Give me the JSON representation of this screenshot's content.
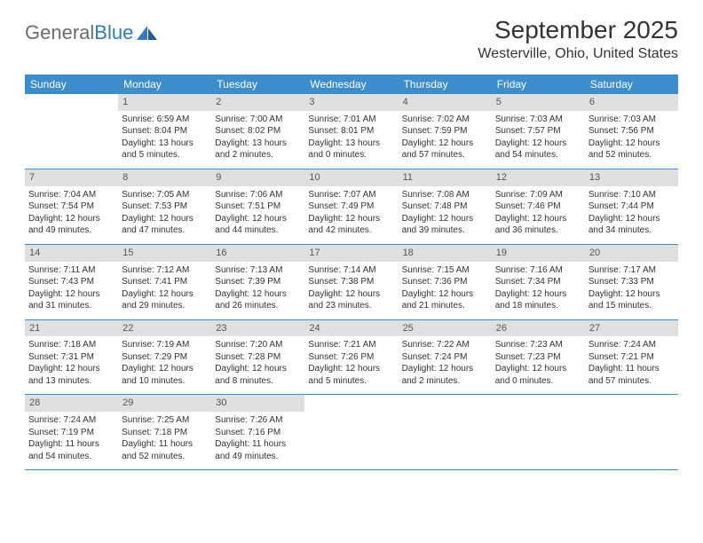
{
  "logo": {
    "text1": "General",
    "text2": "Blue"
  },
  "title": "September 2025",
  "location": "Westerville, Ohio, United States",
  "colors": {
    "header_bg": "#3c8dcc",
    "header_text": "#ffffff",
    "daynum_bg": "#e0e0e0",
    "daynum_text": "#565656",
    "week_border": "#3c8dcc",
    "logo_gray": "#6b6b6b",
    "logo_blue": "#2d7bc0",
    "body_text": "#333333",
    "background": "#ffffff"
  },
  "typography": {
    "month_title_fontsize": 28,
    "location_fontsize": 16,
    "dayhead_fontsize": 12,
    "daynum_fontsize": 11,
    "cell_fontsize": 10
  },
  "dayNames": [
    "Sunday",
    "Monday",
    "Tuesday",
    "Wednesday",
    "Thursday",
    "Friday",
    "Saturday"
  ],
  "weeks": [
    [
      {
        "day": "",
        "sunrise": "",
        "sunset": "",
        "daylight": ""
      },
      {
        "day": "1",
        "sunrise": "Sunrise: 6:59 AM",
        "sunset": "Sunset: 8:04 PM",
        "daylight": "Daylight: 13 hours and 5 minutes."
      },
      {
        "day": "2",
        "sunrise": "Sunrise: 7:00 AM",
        "sunset": "Sunset: 8:02 PM",
        "daylight": "Daylight: 13 hours and 2 minutes."
      },
      {
        "day": "3",
        "sunrise": "Sunrise: 7:01 AM",
        "sunset": "Sunset: 8:01 PM",
        "daylight": "Daylight: 13 hours and 0 minutes."
      },
      {
        "day": "4",
        "sunrise": "Sunrise: 7:02 AM",
        "sunset": "Sunset: 7:59 PM",
        "daylight": "Daylight: 12 hours and 57 minutes."
      },
      {
        "day": "5",
        "sunrise": "Sunrise: 7:03 AM",
        "sunset": "Sunset: 7:57 PM",
        "daylight": "Daylight: 12 hours and 54 minutes."
      },
      {
        "day": "6",
        "sunrise": "Sunrise: 7:03 AM",
        "sunset": "Sunset: 7:56 PM",
        "daylight": "Daylight: 12 hours and 52 minutes."
      }
    ],
    [
      {
        "day": "7",
        "sunrise": "Sunrise: 7:04 AM",
        "sunset": "Sunset: 7:54 PM",
        "daylight": "Daylight: 12 hours and 49 minutes."
      },
      {
        "day": "8",
        "sunrise": "Sunrise: 7:05 AM",
        "sunset": "Sunset: 7:53 PM",
        "daylight": "Daylight: 12 hours and 47 minutes."
      },
      {
        "day": "9",
        "sunrise": "Sunrise: 7:06 AM",
        "sunset": "Sunset: 7:51 PM",
        "daylight": "Daylight: 12 hours and 44 minutes."
      },
      {
        "day": "10",
        "sunrise": "Sunrise: 7:07 AM",
        "sunset": "Sunset: 7:49 PM",
        "daylight": "Daylight: 12 hours and 42 minutes."
      },
      {
        "day": "11",
        "sunrise": "Sunrise: 7:08 AM",
        "sunset": "Sunset: 7:48 PM",
        "daylight": "Daylight: 12 hours and 39 minutes."
      },
      {
        "day": "12",
        "sunrise": "Sunrise: 7:09 AM",
        "sunset": "Sunset: 7:46 PM",
        "daylight": "Daylight: 12 hours and 36 minutes."
      },
      {
        "day": "13",
        "sunrise": "Sunrise: 7:10 AM",
        "sunset": "Sunset: 7:44 PM",
        "daylight": "Daylight: 12 hours and 34 minutes."
      }
    ],
    [
      {
        "day": "14",
        "sunrise": "Sunrise: 7:11 AM",
        "sunset": "Sunset: 7:43 PM",
        "daylight": "Daylight: 12 hours and 31 minutes."
      },
      {
        "day": "15",
        "sunrise": "Sunrise: 7:12 AM",
        "sunset": "Sunset: 7:41 PM",
        "daylight": "Daylight: 12 hours and 29 minutes."
      },
      {
        "day": "16",
        "sunrise": "Sunrise: 7:13 AM",
        "sunset": "Sunset: 7:39 PM",
        "daylight": "Daylight: 12 hours and 26 minutes."
      },
      {
        "day": "17",
        "sunrise": "Sunrise: 7:14 AM",
        "sunset": "Sunset: 7:38 PM",
        "daylight": "Daylight: 12 hours and 23 minutes."
      },
      {
        "day": "18",
        "sunrise": "Sunrise: 7:15 AM",
        "sunset": "Sunset: 7:36 PM",
        "daylight": "Daylight: 12 hours and 21 minutes."
      },
      {
        "day": "19",
        "sunrise": "Sunrise: 7:16 AM",
        "sunset": "Sunset: 7:34 PM",
        "daylight": "Daylight: 12 hours and 18 minutes."
      },
      {
        "day": "20",
        "sunrise": "Sunrise: 7:17 AM",
        "sunset": "Sunset: 7:33 PM",
        "daylight": "Daylight: 12 hours and 15 minutes."
      }
    ],
    [
      {
        "day": "21",
        "sunrise": "Sunrise: 7:18 AM",
        "sunset": "Sunset: 7:31 PM",
        "daylight": "Daylight: 12 hours and 13 minutes."
      },
      {
        "day": "22",
        "sunrise": "Sunrise: 7:19 AM",
        "sunset": "Sunset: 7:29 PM",
        "daylight": "Daylight: 12 hours and 10 minutes."
      },
      {
        "day": "23",
        "sunrise": "Sunrise: 7:20 AM",
        "sunset": "Sunset: 7:28 PM",
        "daylight": "Daylight: 12 hours and 8 minutes."
      },
      {
        "day": "24",
        "sunrise": "Sunrise: 7:21 AM",
        "sunset": "Sunset: 7:26 PM",
        "daylight": "Daylight: 12 hours and 5 minutes."
      },
      {
        "day": "25",
        "sunrise": "Sunrise: 7:22 AM",
        "sunset": "Sunset: 7:24 PM",
        "daylight": "Daylight: 12 hours and 2 minutes."
      },
      {
        "day": "26",
        "sunrise": "Sunrise: 7:23 AM",
        "sunset": "Sunset: 7:23 PM",
        "daylight": "Daylight: 12 hours and 0 minutes."
      },
      {
        "day": "27",
        "sunrise": "Sunrise: 7:24 AM",
        "sunset": "Sunset: 7:21 PM",
        "daylight": "Daylight: 11 hours and 57 minutes."
      }
    ],
    [
      {
        "day": "28",
        "sunrise": "Sunrise: 7:24 AM",
        "sunset": "Sunset: 7:19 PM",
        "daylight": "Daylight: 11 hours and 54 minutes."
      },
      {
        "day": "29",
        "sunrise": "Sunrise: 7:25 AM",
        "sunset": "Sunset: 7:18 PM",
        "daylight": "Daylight: 11 hours and 52 minutes."
      },
      {
        "day": "30",
        "sunrise": "Sunrise: 7:26 AM",
        "sunset": "Sunset: 7:16 PM",
        "daylight": "Daylight: 11 hours and 49 minutes."
      },
      {
        "day": "",
        "sunrise": "",
        "sunset": "",
        "daylight": ""
      },
      {
        "day": "",
        "sunrise": "",
        "sunset": "",
        "daylight": ""
      },
      {
        "day": "",
        "sunrise": "",
        "sunset": "",
        "daylight": ""
      },
      {
        "day": "",
        "sunrise": "",
        "sunset": "",
        "daylight": ""
      }
    ]
  ]
}
